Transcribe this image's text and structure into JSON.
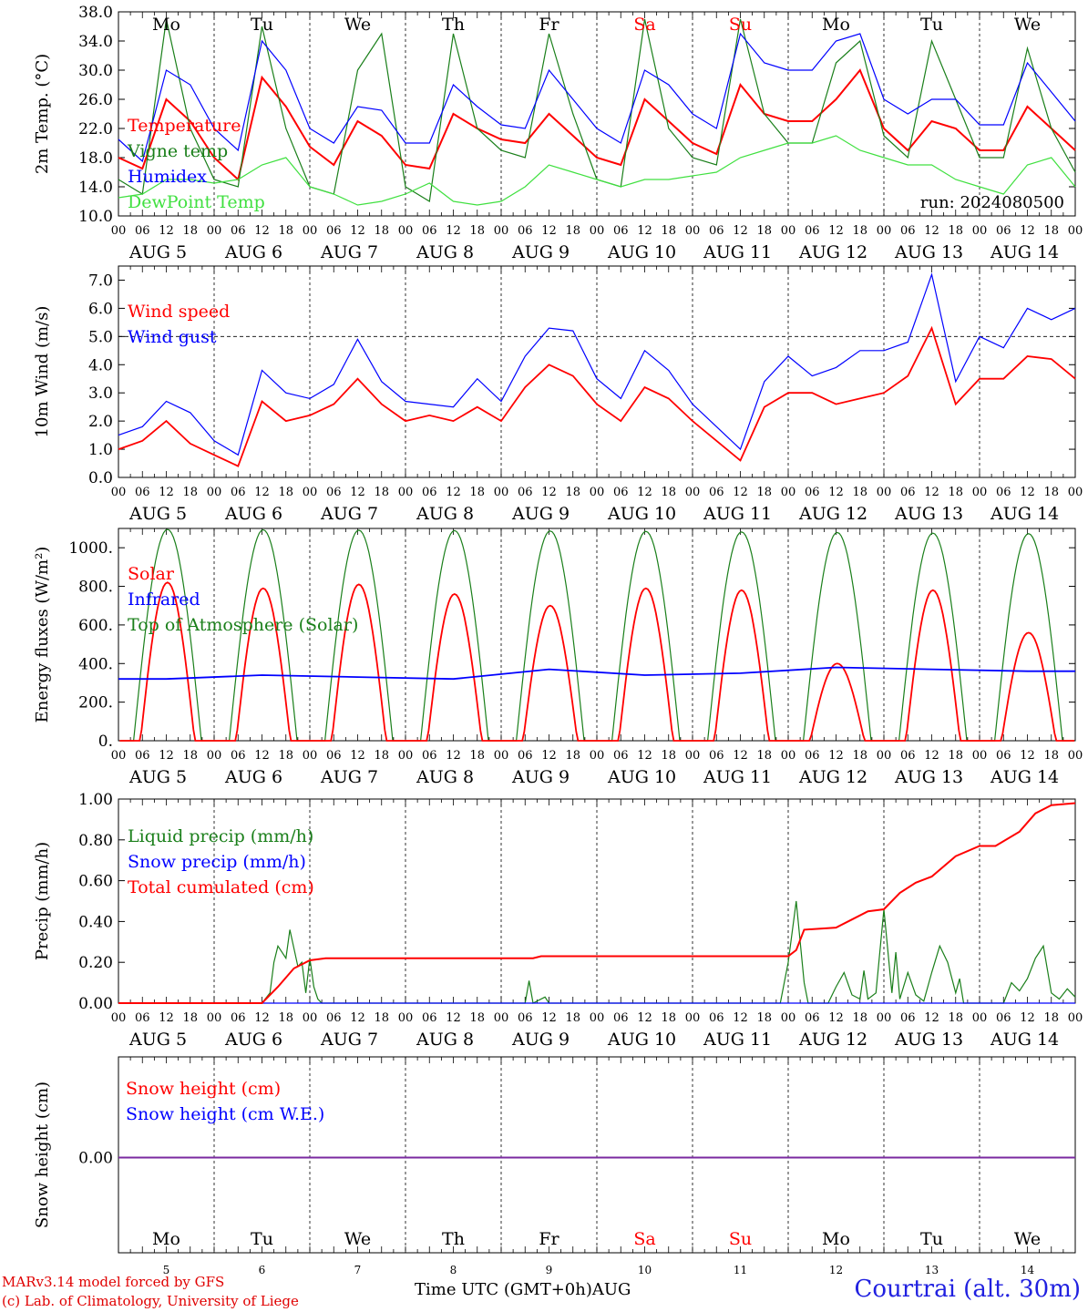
{
  "chart_data": [
    {
      "type": "line",
      "ylabel": "2m Temp. (°C)",
      "ylim": [
        10,
        38
      ],
      "yticks": [
        "10.0",
        "14.0",
        "18.0",
        "22.0",
        "26.0",
        "30.0",
        "34.0",
        "38.0"
      ],
      "annotation": "run: 2024080500",
      "x_hours": [
        0,
        6,
        12,
        18,
        24,
        30,
        36,
        42,
        48,
        54,
        60,
        66,
        72,
        78,
        84,
        90,
        96,
        102,
        108,
        114,
        120,
        126,
        132,
        138,
        144,
        150,
        156,
        162,
        168,
        174,
        180,
        186,
        192,
        198,
        204,
        210,
        216,
        222,
        228,
        234,
        240
      ],
      "series": [
        {
          "name": "Temperature",
          "color": "#ff0000",
          "values": [
            18,
            16.5,
            26,
            23,
            18,
            15,
            29,
            25,
            19.5,
            17,
            23,
            21,
            17,
            16.5,
            24,
            22,
            20.5,
            20,
            24,
            21,
            18,
            17,
            26,
            23,
            20,
            18.5,
            28,
            24,
            23,
            23,
            26,
            30,
            22,
            19,
            23,
            22,
            19,
            19,
            25,
            22,
            19
          ]
        },
        {
          "name": "Vigne temp",
          "color": "#1a7f1a",
          "values": [
            15,
            13,
            37,
            22,
            15,
            14,
            36,
            22,
            14,
            13,
            30,
            35,
            14,
            12,
            35,
            22,
            19,
            18,
            35,
            24,
            15,
            14,
            37,
            22,
            18,
            17,
            37,
            24,
            20,
            20,
            31,
            34,
            21,
            18,
            34,
            26,
            18,
            18,
            33,
            22,
            16
          ]
        },
        {
          "name": "Humidex",
          "color": "#0000ff",
          "values": [
            20.5,
            17.5,
            30,
            28,
            22,
            19,
            34,
            30,
            22,
            20,
            25,
            24.5,
            20,
            20,
            28,
            25,
            22.5,
            22,
            30,
            26,
            22,
            20,
            30,
            28,
            24,
            22,
            35,
            31,
            30,
            30,
            34,
            35,
            26,
            24,
            26,
            26,
            22.5,
            22.5,
            31,
            27,
            23
          ]
        },
        {
          "name": "DewPoint Temp",
          "color": "#40e040",
          "values": [
            12.5,
            13,
            15,
            15,
            14.5,
            15,
            17,
            18,
            14,
            13,
            11.5,
            12,
            13,
            14.5,
            12,
            11.5,
            12,
            14,
            17,
            16,
            15,
            14,
            15,
            15,
            15.5,
            16,
            18,
            19,
            20,
            20,
            21,
            19,
            18,
            17,
            17,
            15,
            14,
            13,
            17,
            18,
            14
          ]
        }
      ],
      "day_labels": [
        "Mo",
        "Tu",
        "We",
        "Th",
        "Fr",
        "Sa",
        "Su",
        "Mo",
        "Tu",
        "We"
      ]
    },
    {
      "type": "line",
      "ylabel": "10m Wind (m/s)",
      "ylim": [
        0,
        7.5
      ],
      "yticks": [
        "0.0",
        "1.0",
        "2.0",
        "3.0",
        "4.0",
        "5.0",
        "6.0",
        "7.0"
      ],
      "reference_line": 5.0,
      "x_hours": [
        0,
        6,
        12,
        18,
        24,
        30,
        36,
        42,
        48,
        54,
        60,
        66,
        72,
        78,
        84,
        90,
        96,
        102,
        108,
        114,
        120,
        126,
        132,
        138,
        144,
        150,
        156,
        162,
        168,
        174,
        180,
        186,
        192,
        198,
        204,
        210,
        216,
        222,
        228,
        234,
        240
      ],
      "series": [
        {
          "name": "Wind speed",
          "color": "#ff0000",
          "values": [
            1,
            1.3,
            2,
            1.2,
            0.8,
            0.4,
            2.7,
            2,
            2.2,
            2.6,
            3.5,
            2.6,
            2,
            2.2,
            2,
            2.5,
            2,
            3.2,
            4,
            3.6,
            2.6,
            2,
            3.2,
            2.8,
            2,
            1.3,
            0.6,
            2.5,
            3,
            3,
            2.6,
            2.8,
            3,
            3.6,
            5.3,
            2.6,
            3.5,
            3.5,
            4.3,
            4.2,
            3.5
          ]
        },
        {
          "name": "Wind gust",
          "color": "#0000ff",
          "values": [
            1.5,
            1.8,
            2.7,
            2.3,
            1.3,
            0.8,
            3.8,
            3,
            2.8,
            3.3,
            4.9,
            3.4,
            2.7,
            2.6,
            2.5,
            3.5,
            2.7,
            4.3,
            5.3,
            5.2,
            3.5,
            2.8,
            4.5,
            3.8,
            2.6,
            1.8,
            1,
            3.4,
            4.3,
            3.6,
            3.9,
            4.5,
            4.5,
            4.8,
            7.2,
            3.4,
            5,
            4.6,
            6,
            5.6,
            6
          ]
        }
      ]
    },
    {
      "type": "line",
      "ylabel": "Energy fluxes (W/m²)",
      "ylim": [
        0,
        1100
      ],
      "yticks": [
        "0.",
        "200.",
        "400.",
        "600.",
        "800.",
        "1000."
      ],
      "series": [
        {
          "name": "Solar",
          "color": "#ff0000",
          "daily_peaks": [
            820,
            790,
            810,
            760,
            700,
            790,
            780,
            400,
            780,
            560
          ]
        },
        {
          "name": "Infrared",
          "color": "#0000ff",
          "values_by_day": [
            320,
            340,
            330,
            320,
            370,
            340,
            350,
            380,
            370,
            360
          ]
        },
        {
          "name": "Top of Atmosphere (Solar)",
          "color": "#1a7f1a",
          "daily_peaks": [
            1095,
            1093,
            1091,
            1089,
            1087,
            1085,
            1082,
            1079,
            1076,
            1073
          ]
        }
      ]
    },
    {
      "type": "line",
      "ylabel": "Precip (mm/h)",
      "ylim": [
        0,
        1.0
      ],
      "yticks": [
        "0.00",
        "0.20",
        "0.40",
        "0.60",
        "0.80",
        "1.00"
      ],
      "series": [
        {
          "name": "Liquid precip (mm/h)",
          "color": "#1a7f1a",
          "points": [
            [
              0,
              0
            ],
            [
              36,
              0
            ],
            [
              38,
              0.05
            ],
            [
              39,
              0.2
            ],
            [
              40,
              0.28
            ],
            [
              42,
              0.22
            ],
            [
              43,
              0.36
            ],
            [
              45,
              0.18
            ],
            [
              46,
              0.2
            ],
            [
              47,
              0.05
            ],
            [
              48,
              0.22
            ],
            [
              49,
              0.08
            ],
            [
              50,
              0.02
            ],
            [
              51,
              0
            ],
            [
              102,
              0
            ],
            [
              103,
              0.11
            ],
            [
              104,
              0
            ],
            [
              107,
              0.03
            ],
            [
              108,
              0
            ],
            [
              166,
              0
            ],
            [
              168,
              0.2
            ],
            [
              170,
              0.5
            ],
            [
              172,
              0.1
            ],
            [
              173,
              0
            ],
            [
              178,
              0
            ],
            [
              180,
              0.08
            ],
            [
              182,
              0.15
            ],
            [
              184,
              0.04
            ],
            [
              186,
              0.02
            ],
            [
              187,
              0.16
            ],
            [
              188,
              0.02
            ],
            [
              190,
              0.05
            ],
            [
              192,
              0.46
            ],
            [
              194,
              0.05
            ],
            [
              195,
              0.25
            ],
            [
              196,
              0.02
            ],
            [
              198,
              0.15
            ],
            [
              200,
              0.04
            ],
            [
              202,
              0.01
            ],
            [
              204,
              0.15
            ],
            [
              206,
              0.28
            ],
            [
              208,
              0.2
            ],
            [
              210,
              0.05
            ],
            [
              211,
              0.12
            ],
            [
              212,
              0
            ],
            [
              222,
              0
            ],
            [
              224,
              0.1
            ],
            [
              226,
              0.06
            ],
            [
              228,
              0.12
            ],
            [
              230,
              0.22
            ],
            [
              232,
              0.28
            ],
            [
              234,
              0.05
            ],
            [
              236,
              0.02
            ],
            [
              238,
              0.07
            ],
            [
              240,
              0.03
            ]
          ]
        },
        {
          "name": "Snow precip (mm/h)",
          "color": "#0000ff",
          "points": [
            [
              0,
              0
            ],
            [
              240,
              0
            ]
          ]
        },
        {
          "name": "Total cumulated (cm)",
          "color": "#ff0000",
          "points": [
            [
              0,
              0
            ],
            [
              36,
              0
            ],
            [
              40,
              0.08
            ],
            [
              44,
              0.17
            ],
            [
              48,
              0.21
            ],
            [
              52,
              0.22
            ],
            [
              104,
              0.22
            ],
            [
              106,
              0.23
            ],
            [
              168,
              0.23
            ],
            [
              170,
              0.26
            ],
            [
              172,
              0.36
            ],
            [
              180,
              0.37
            ],
            [
              184,
              0.41
            ],
            [
              188,
              0.45
            ],
            [
              192,
              0.46
            ],
            [
              196,
              0.54
            ],
            [
              200,
              0.59
            ],
            [
              204,
              0.62
            ],
            [
              210,
              0.72
            ],
            [
              216,
              0.77
            ],
            [
              220,
              0.77
            ],
            [
              226,
              0.84
            ],
            [
              230,
              0.93
            ],
            [
              234,
              0.97
            ],
            [
              240,
              0.98
            ]
          ]
        }
      ]
    },
    {
      "type": "line",
      "ylabel": "Snow height (cm)",
      "yticks": [
        "0.00"
      ],
      "series": [
        {
          "name": "Snow height (cm)",
          "color": "#ff0000",
          "values": [
            0,
            0
          ]
        },
        {
          "name": "Snow height (cm W.E.)",
          "color": "#0000ff",
          "values": [
            0,
            0
          ]
        }
      ],
      "day_labels": [
        "Mo",
        "Tu",
        "We",
        "Th",
        "Fr",
        "Sa",
        "Su",
        "Mo",
        "Tu",
        "We"
      ],
      "day_numbers": [
        "5",
        "6",
        "7",
        "8",
        "9",
        "10",
        "11",
        "12",
        "13",
        "14"
      ]
    }
  ],
  "axis": {
    "hour_ticks": [
      "00",
      "06",
      "12",
      "18"
    ],
    "final_tick": "00",
    "dates": [
      "AUG  5",
      "AUG  6",
      "AUG  7",
      "AUG  8",
      "AUG  9",
      "AUG 10",
      "AUG 11",
      "AUG 12",
      "AUG 13",
      "AUG 14"
    ],
    "weekend_color": "#ff0000",
    "weekend_days": [
      5,
      6
    ],
    "xlabel": "Time UTC (GMT+0h)",
    "month": "AUG"
  },
  "footer": {
    "credit_line1": "MARv3.14 model forced by GFS",
    "credit_line2": "(c) Lab. of Climatology, University of Liege",
    "station": "Courtrai (alt. 30m)"
  }
}
